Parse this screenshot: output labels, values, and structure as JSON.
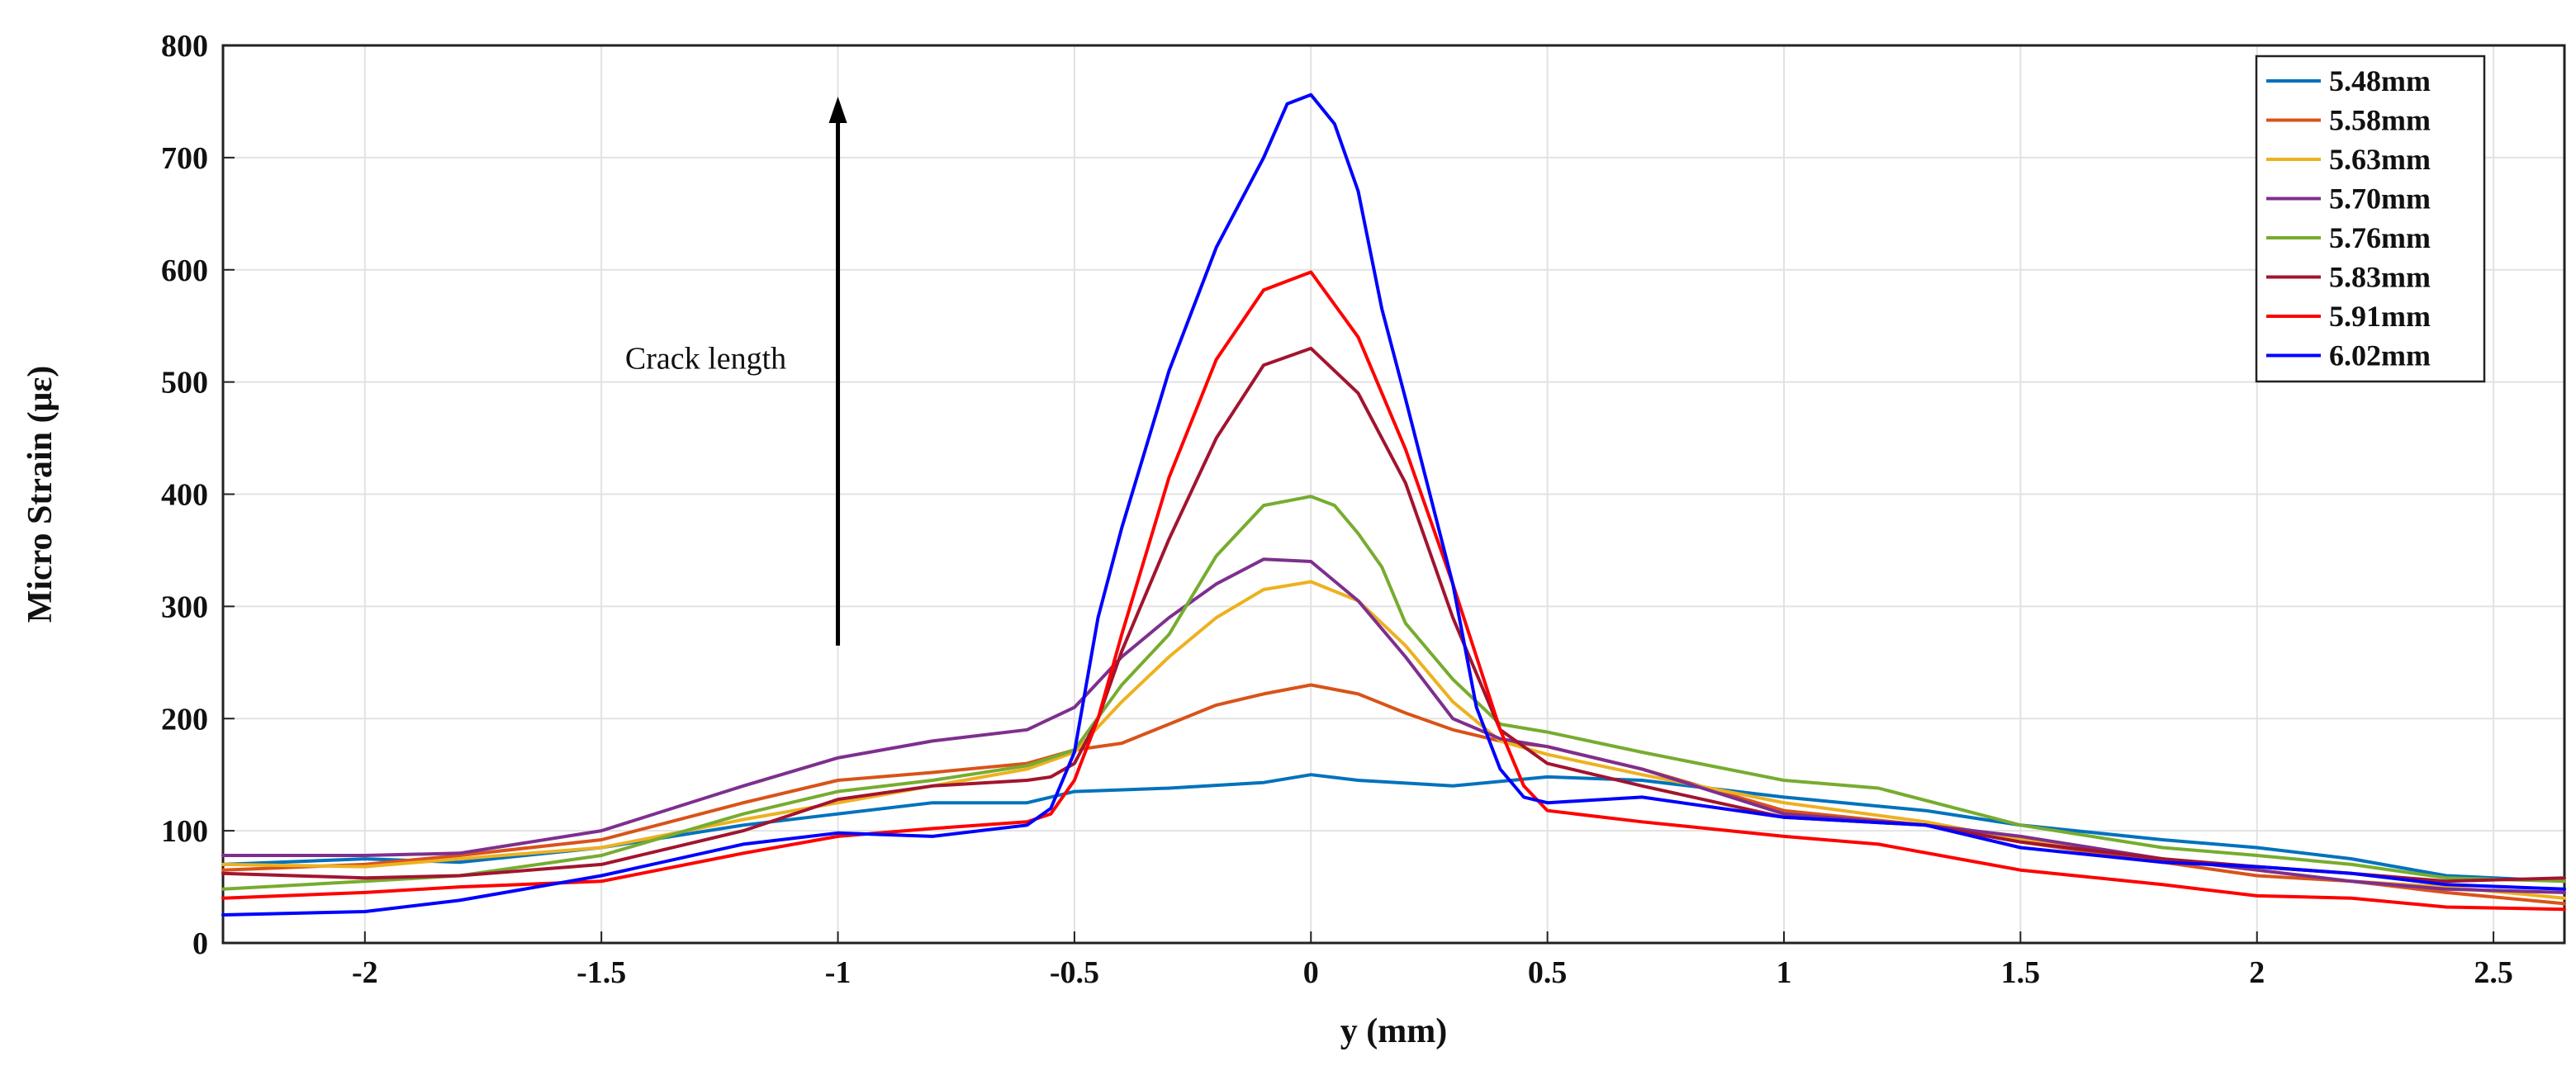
{
  "chart_data": {
    "type": "line",
    "title": "",
    "xlabel": "y (mm)",
    "ylabel": "Micro Strain (με)",
    "xlim": [
      -2.3,
      2.65
    ],
    "ylim": [
      0,
      800
    ],
    "grid": true,
    "xticks": [
      -2,
      -1.5,
      -1,
      -0.5,
      0,
      0.5,
      1,
      1.5,
      2,
      2.5
    ],
    "xtick_labels": [
      "-2",
      "-1.5",
      "-1",
      "-0.5",
      "0",
      "0.5",
      "1",
      "1.5",
      "2",
      "2.5"
    ],
    "yticks": [
      0,
      100,
      200,
      300,
      400,
      500,
      600,
      700,
      800
    ],
    "ytick_labels": [
      "0",
      "100",
      "200",
      "300",
      "400",
      "500",
      "600",
      "700",
      "800"
    ],
    "legend_position": "top-right",
    "annotation": {
      "text": "Crack length",
      "arrow_from": [
        -1,
        265
      ],
      "arrow_to": [
        -1,
        750
      ]
    },
    "series": [
      {
        "name": "5.48mm",
        "color": "#0072BD",
        "x": [
          -2.3,
          -2.0,
          -1.8,
          -1.5,
          -1.2,
          -1.0,
          -0.8,
          -0.6,
          -0.5,
          -0.3,
          -0.1,
          0.0,
          0.1,
          0.3,
          0.5,
          0.7,
          1.0,
          1.3,
          1.5,
          1.8,
          2.0,
          2.2,
          2.4,
          2.65
        ],
        "y": [
          70,
          75,
          72,
          85,
          105,
          115,
          125,
          125,
          135,
          138,
          143,
          150,
          145,
          140,
          148,
          145,
          130,
          118,
          105,
          92,
          85,
          75,
          60,
          55
        ]
      },
      {
        "name": "5.58mm",
        "color": "#D95319",
        "x": [
          -2.3,
          -2.0,
          -1.8,
          -1.5,
          -1.2,
          -1.0,
          -0.8,
          -0.6,
          -0.5,
          -0.4,
          -0.3,
          -0.2,
          -0.1,
          0.0,
          0.1,
          0.2,
          0.3,
          0.4,
          0.5,
          0.7,
          1.0,
          1.3,
          1.5,
          1.8,
          2.0,
          2.2,
          2.4,
          2.65
        ],
        "y": [
          65,
          70,
          78,
          92,
          125,
          145,
          152,
          160,
          172,
          178,
          195,
          212,
          222,
          230,
          222,
          205,
          190,
          180,
          175,
          155,
          118,
          105,
          90,
          72,
          60,
          55,
          45,
          35
        ]
      },
      {
        "name": "5.63mm",
        "color": "#EDB120",
        "x": [
          -2.3,
          -2.0,
          -1.8,
          -1.5,
          -1.2,
          -1.0,
          -0.8,
          -0.6,
          -0.5,
          -0.4,
          -0.3,
          -0.2,
          -0.1,
          0.0,
          0.1,
          0.2,
          0.3,
          0.4,
          0.5,
          0.7,
          1.0,
          1.3,
          1.5,
          1.8,
          2.0,
          2.2,
          2.4,
          2.65
        ],
        "y": [
          70,
          68,
          75,
          85,
          110,
          125,
          140,
          155,
          170,
          215,
          255,
          290,
          315,
          322,
          305,
          265,
          215,
          180,
          168,
          150,
          125,
          108,
          92,
          75,
          65,
          55,
          50,
          40
        ]
      },
      {
        "name": "5.70mm",
        "color": "#7E2F8E",
        "x": [
          -2.3,
          -2.0,
          -1.8,
          -1.5,
          -1.2,
          -1.0,
          -0.8,
          -0.6,
          -0.5,
          -0.4,
          -0.3,
          -0.2,
          -0.1,
          0.0,
          0.1,
          0.2,
          0.3,
          0.4,
          0.5,
          0.7,
          1.0,
          1.3,
          1.5,
          1.8,
          2.0,
          2.2,
          2.4,
          2.65
        ],
        "y": [
          78,
          78,
          80,
          100,
          140,
          165,
          180,
          190,
          210,
          255,
          290,
          320,
          342,
          340,
          305,
          255,
          200,
          182,
          175,
          155,
          115,
          105,
          95,
          75,
          65,
          55,
          48,
          45
        ]
      },
      {
        "name": "5.76mm",
        "color": "#77AC30",
        "x": [
          -2.3,
          -2.0,
          -1.8,
          -1.5,
          -1.2,
          -1.0,
          -0.8,
          -0.6,
          -0.5,
          -0.4,
          -0.3,
          -0.2,
          -0.1,
          0.0,
          0.05,
          0.1,
          0.15,
          0.2,
          0.3,
          0.4,
          0.5,
          0.7,
          1.0,
          1.2,
          1.5,
          1.8,
          2.0,
          2.2,
          2.4,
          2.65
        ],
        "y": [
          48,
          55,
          60,
          78,
          115,
          135,
          145,
          158,
          172,
          230,
          275,
          345,
          390,
          398,
          390,
          365,
          335,
          285,
          235,
          195,
          188,
          170,
          145,
          138,
          105,
          85,
          78,
          70,
          58,
          55
        ]
      },
      {
        "name": "5.83mm",
        "color": "#A2142F",
        "x": [
          -2.3,
          -2.0,
          -1.8,
          -1.5,
          -1.2,
          -1.0,
          -0.8,
          -0.6,
          -0.55,
          -0.5,
          -0.45,
          -0.4,
          -0.3,
          -0.2,
          -0.1,
          0.0,
          0.1,
          0.2,
          0.3,
          0.4,
          0.5,
          0.7,
          1.0,
          1.3,
          1.5,
          1.8,
          2.0,
          2.2,
          2.4,
          2.65
        ],
        "y": [
          62,
          58,
          60,
          70,
          100,
          128,
          140,
          145,
          148,
          160,
          200,
          260,
          360,
          450,
          515,
          530,
          490,
          410,
          290,
          190,
          160,
          140,
          112,
          105,
          90,
          75,
          68,
          62,
          55,
          58
        ]
      },
      {
        "name": "5.91mm",
        "color": "#FF0000",
        "x": [
          -2.3,
          -2.0,
          -1.8,
          -1.5,
          -1.2,
          -1.0,
          -0.8,
          -0.6,
          -0.55,
          -0.5,
          -0.45,
          -0.4,
          -0.3,
          -0.2,
          -0.1,
          0.0,
          0.1,
          0.15,
          0.2,
          0.3,
          0.4,
          0.45,
          0.5,
          0.7,
          1.0,
          1.2,
          1.5,
          1.8,
          2.0,
          2.2,
          2.4,
          2.65
        ],
        "y": [
          40,
          45,
          50,
          55,
          80,
          95,
          102,
          108,
          115,
          145,
          200,
          275,
          415,
          520,
          582,
          598,
          540,
          490,
          440,
          320,
          190,
          140,
          118,
          108,
          95,
          88,
          65,
          52,
          42,
          40,
          32,
          30
        ]
      },
      {
        "name": "6.02mm",
        "color": "#0000FF",
        "x": [
          -2.3,
          -2.0,
          -1.8,
          -1.5,
          -1.2,
          -1.0,
          -0.8,
          -0.6,
          -0.55,
          -0.5,
          -0.45,
          -0.4,
          -0.3,
          -0.2,
          -0.1,
          -0.05,
          0.0,
          0.05,
          0.1,
          0.15,
          0.2,
          0.3,
          0.35,
          0.4,
          0.45,
          0.5,
          0.7,
          1.0,
          1.3,
          1.5,
          1.8,
          2.0,
          2.2,
          2.4,
          2.65
        ],
        "y": [
          25,
          28,
          38,
          60,
          88,
          98,
          95,
          105,
          120,
          170,
          290,
          370,
          510,
          620,
          700,
          748,
          756,
          730,
          670,
          565,
          485,
          320,
          210,
          155,
          130,
          125,
          130,
          112,
          105,
          85,
          72,
          68,
          62,
          52,
          48
        ]
      }
    ]
  }
}
